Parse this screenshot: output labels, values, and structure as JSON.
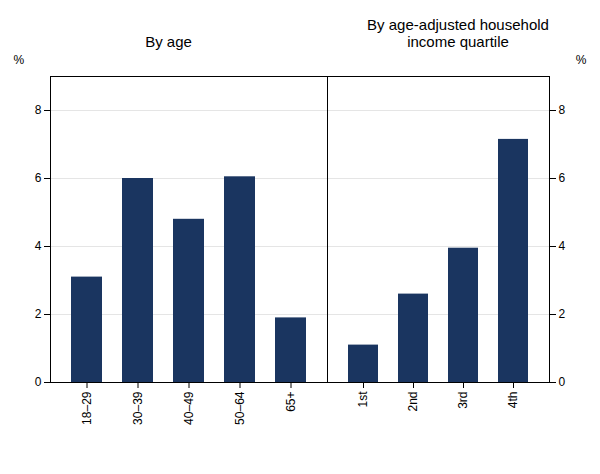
{
  "chart_data": [
    {
      "type": "bar",
      "title": "By age",
      "categories": [
        "18–29",
        "30–39",
        "40–49",
        "50–64",
        "65+"
      ],
      "values": [
        3.1,
        6.0,
        4.8,
        6.05,
        1.9
      ],
      "color": "#1a3560",
      "ylim": [
        0,
        9
      ],
      "yticks": [
        0,
        2,
        4,
        6,
        8
      ],
      "grid": true,
      "ylabel": "%"
    },
    {
      "type": "bar",
      "title": "By age-adjusted household\nincome quartile",
      "categories": [
        "1st",
        "2nd",
        "3rd",
        "4th"
      ],
      "values": [
        1.1,
        2.6,
        3.95,
        7.15
      ],
      "color": "#1a3560",
      "ylim": [
        0,
        9
      ],
      "yticks": [
        0,
        2,
        4,
        6,
        8
      ],
      "grid": true,
      "ylabel": "%"
    }
  ]
}
